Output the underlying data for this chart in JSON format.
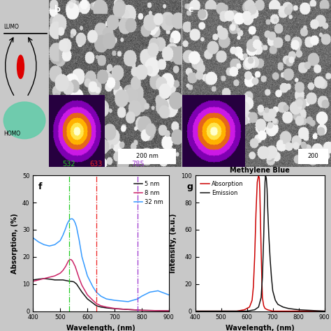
{
  "fig_width": 4.74,
  "fig_height": 4.74,
  "dpi": 100,
  "bg_color": "#c8c8c8",
  "panel_f": {
    "xlabel": "Wavelength, (nm)",
    "ylabel": "Absorption, (%)",
    "xlim": [
      400,
      900
    ],
    "ylim": [
      0,
      50
    ],
    "yticks": [
      0,
      10,
      20,
      30,
      40,
      50
    ],
    "xticks": [
      400,
      500,
      600,
      700,
      800,
      900
    ],
    "vlines": [
      {
        "x": 532,
        "color": "#22cc22",
        "label": "532"
      },
      {
        "x": 633,
        "color": "#ee2222",
        "label": "633"
      },
      {
        "x": 785,
        "color": "#9933cc",
        "label": "785"
      }
    ],
    "series": [
      {
        "label": "5 nm",
        "color": "#111111",
        "x": [
          400,
          420,
          440,
          460,
          480,
          500,
          510,
          520,
          525,
          530,
          535,
          540,
          545,
          550,
          560,
          570,
          580,
          600,
          620,
          633,
          650,
          670,
          700,
          720,
          750,
          785,
          800,
          850,
          900
        ],
        "y": [
          11.5,
          11.8,
          12.0,
          11.8,
          11.5,
          11.5,
          11.5,
          11.3,
          11.2,
          11.1,
          11.0,
          11.0,
          10.9,
          10.8,
          10.0,
          8.5,
          7.0,
          4.5,
          3.0,
          2.0,
          1.5,
          1.2,
          0.9,
          0.8,
          0.6,
          0.4,
          0.3,
          0.2,
          0.1
        ]
      },
      {
        "label": "8 nm",
        "color": "#cc2266",
        "x": [
          400,
          420,
          440,
          460,
          480,
          500,
          510,
          520,
          525,
          530,
          535,
          540,
          545,
          550,
          555,
          560,
          570,
          580,
          600,
          620,
          633,
          650,
          670,
          700,
          720,
          750,
          785,
          800,
          850,
          900
        ],
        "y": [
          11.0,
          11.5,
          12.0,
          12.5,
          13.0,
          14.0,
          15.0,
          16.5,
          17.5,
          18.5,
          19.0,
          19.0,
          18.5,
          17.5,
          16.5,
          15.0,
          12.0,
          9.5,
          6.0,
          4.0,
          2.8,
          2.0,
          1.5,
          1.0,
          0.8,
          0.6,
          0.4,
          0.3,
          0.2,
          0.1
        ]
      },
      {
        "label": "32 nm",
        "color": "#3399ff",
        "x": [
          400,
          420,
          440,
          460,
          480,
          500,
          510,
          520,
          525,
          530,
          535,
          540,
          545,
          550,
          555,
          560,
          570,
          580,
          600,
          620,
          633,
          650,
          670,
          700,
          720,
          750,
          785,
          800,
          830,
          860,
          900
        ],
        "y": [
          27.0,
          25.5,
          24.5,
          24.0,
          24.5,
          26.0,
          28.0,
          30.5,
          32.0,
          33.0,
          33.8,
          34.0,
          34.0,
          33.5,
          32.5,
          31.0,
          26.0,
          20.0,
          13.0,
          9.0,
          7.0,
          5.5,
          4.5,
          4.0,
          3.8,
          3.5,
          4.5,
          5.5,
          7.0,
          7.5,
          6.0
        ]
      }
    ],
    "label": "f",
    "bg_color": "#ffffff"
  },
  "panel_g": {
    "xlabel": "Wavelength, (nm)",
    "ylabel": "Intensity, (a.u.)",
    "xlim": [
      400,
      900
    ],
    "ylim": [
      0,
      100
    ],
    "yticks": [
      0,
      20,
      40,
      60,
      80,
      100
    ],
    "xticks": [
      400,
      500,
      600,
      700,
      800,
      900
    ],
    "title": "Methylene Blue",
    "series": [
      {
        "label": "Absorption",
        "color": "#cc0000",
        "x": [
          400,
          500,
          560,
          590,
          610,
          620,
          625,
          630,
          635,
          640,
          645,
          648,
          650,
          652,
          655,
          658,
          660,
          665,
          670,
          680,
          700,
          720,
          750,
          800,
          900
        ],
        "y": [
          0,
          0,
          0,
          1,
          3,
          8,
          18,
          40,
          72,
          95,
          100,
          98,
          88,
          70,
          45,
          22,
          10,
          4,
          2,
          1,
          0,
          0,
          0,
          0,
          0
        ]
      },
      {
        "label": "Emission",
        "color": "#111111",
        "x": [
          400,
          500,
          560,
          600,
          630,
          645,
          655,
          660,
          665,
          668,
          670,
          672,
          675,
          678,
          680,
          685,
          690,
          695,
          700,
          710,
          720,
          740,
          760,
          800,
          900
        ],
        "y": [
          0,
          0,
          0,
          0,
          1,
          3,
          10,
          25,
          55,
          80,
          95,
          100,
          98,
          90,
          78,
          55,
          38,
          25,
          15,
          8,
          5,
          3,
          2,
          1,
          0
        ]
      }
    ],
    "label": "g",
    "bg_color": "#ffffff"
  }
}
